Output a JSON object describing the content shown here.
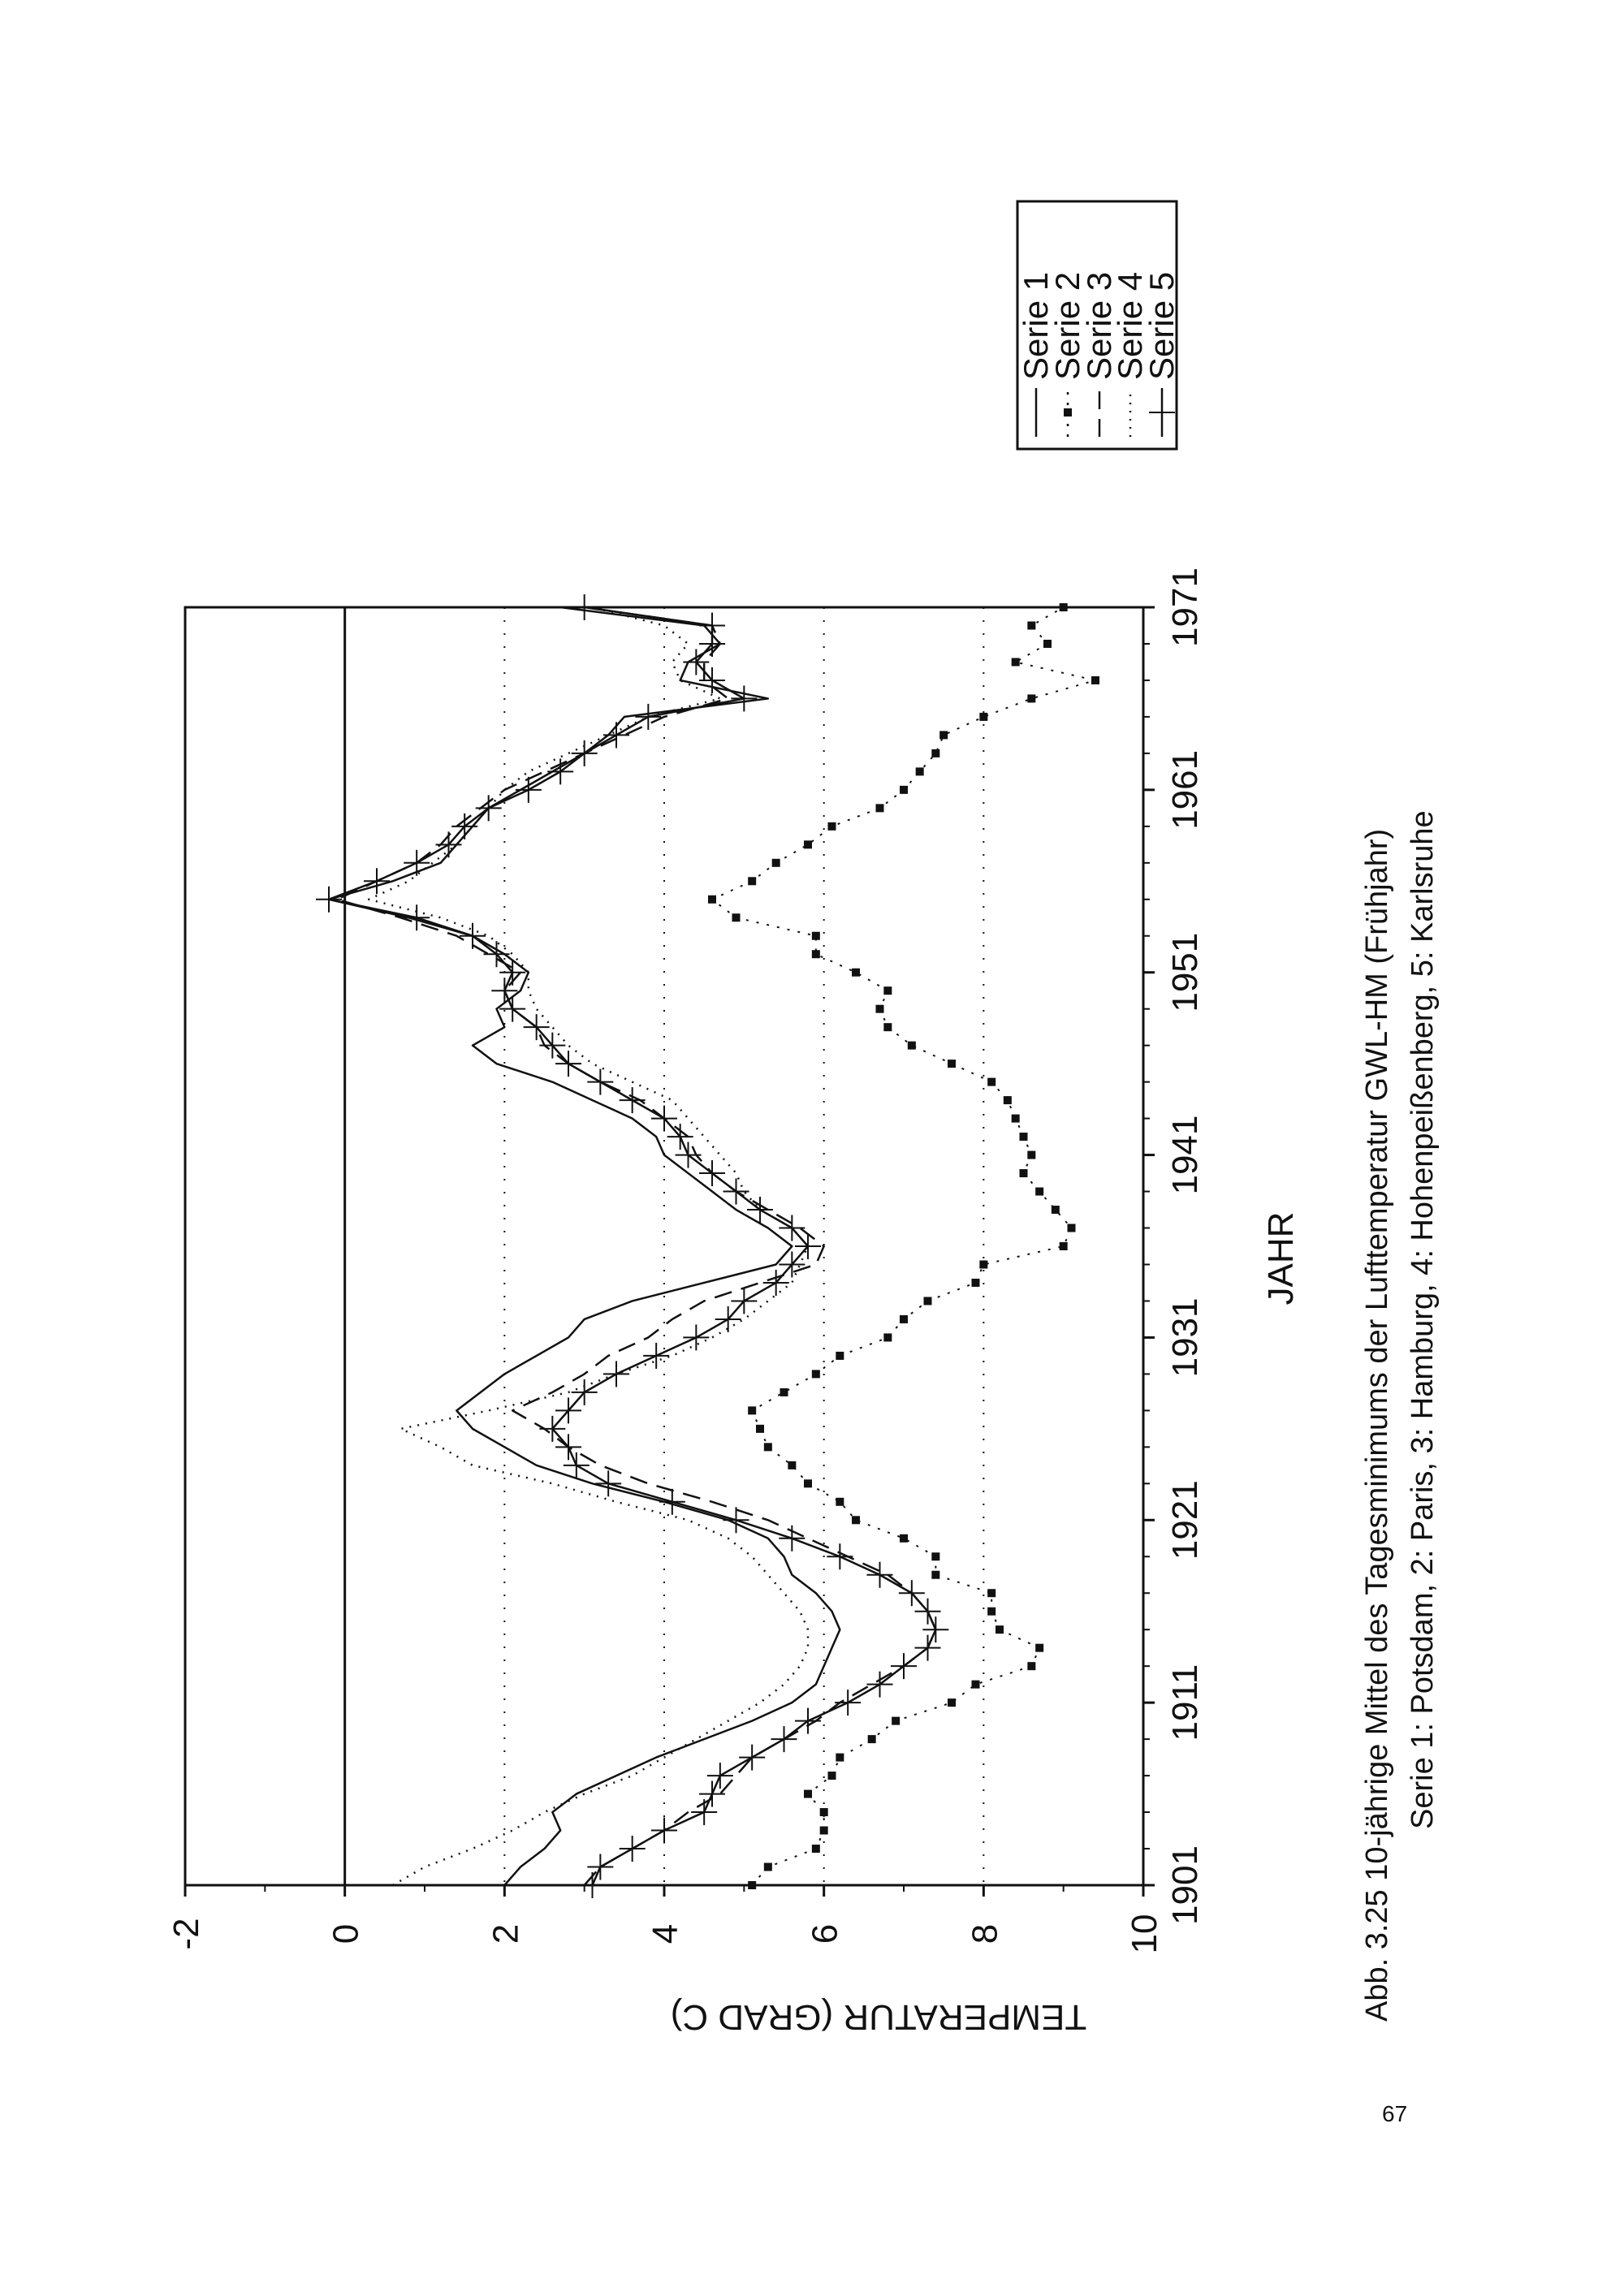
{
  "page_number": "67",
  "caption": {
    "line1": "Abb. 3.25 10-jährige Mittel des Tagesminimums der Lufttemperatur GWL-HM (Frühjahr)",
    "line2": "Serie 1: Potsdam, 2: Paris, 3: Hamburg, 4: Hohenpeißenberg, 5: Karlsruhe"
  },
  "colors": {
    "ink": "#111111",
    "background": "#ffffff"
  },
  "chart_data": {
    "type": "line",
    "orientation": "rotated 90° counter-clockwise on the page",
    "title": "",
    "xlabel": "JAHR",
    "ylabel": "TEMPERATUR (GRAD C)",
    "xlim": [
      1901,
      1971
    ],
    "ylim": [
      -2,
      10
    ],
    "xticks": [
      "1901",
      "1911",
      "1921",
      "1931",
      "1941",
      "1951",
      "1961",
      "1971"
    ],
    "yticks": [
      "-2",
      "0",
      "2",
      "4",
      "6",
      "8",
      "10"
    ],
    "grid": "dotted horizontal lines at 2, 4, 6, 8; solid reference line at 0",
    "legend_position": "right (top of the rotated page)",
    "x": [
      1901,
      1902,
      1903,
      1904,
      1905,
      1906,
      1907,
      1908,
      1909,
      1910,
      1911,
      1912,
      1913,
      1914,
      1915,
      1916,
      1917,
      1918,
      1919,
      1920,
      1921,
      1922,
      1923,
      1924,
      1925,
      1926,
      1927,
      1928,
      1929,
      1930,
      1931,
      1932,
      1933,
      1934,
      1935,
      1936,
      1937,
      1938,
      1939,
      1940,
      1941,
      1942,
      1943,
      1944,
      1945,
      1946,
      1947,
      1948,
      1949,
      1950,
      1951,
      1952,
      1953,
      1954,
      1955,
      1956,
      1957,
      1958,
      1959,
      1960,
      1961,
      1962,
      1963,
      1964,
      1965,
      1966,
      1967,
      1968,
      1969,
      1970,
      1971
    ],
    "series": [
      {
        "name": "Serie 1",
        "marker": "none",
        "dash": "solid",
        "values": [
          2.0,
          2.2,
          2.5,
          2.7,
          2.6,
          2.9,
          3.4,
          3.9,
          4.5,
          5.1,
          5.6,
          5.9,
          6.0,
          6.1,
          6.2,
          6.1,
          5.9,
          5.6,
          5.5,
          5.3,
          4.8,
          4.0,
          3.1,
          2.4,
          2.0,
          1.6,
          1.4,
          1.7,
          2.0,
          2.4,
          2.8,
          3.0,
          3.6,
          4.5,
          5.4,
          5.6,
          5.3,
          4.9,
          4.6,
          4.3,
          4.0,
          3.9,
          3.6,
          3.1,
          2.6,
          1.9,
          1.6,
          2.0,
          1.9,
          2.2,
          2.3,
          2.0,
          1.6,
          0.8,
          -0.2,
          0.6,
          1.2,
          1.4,
          1.6,
          1.8,
          2.2,
          2.6,
          3.0,
          3.3,
          3.5,
          5.3,
          4.2,
          4.3,
          4.7,
          4.5,
          2.7
        ]
      },
      {
        "name": "Serie 2",
        "marker": "square",
        "dash": "dotted",
        "values": [
          5.1,
          5.3,
          5.9,
          6.0,
          6.0,
          5.8,
          6.1,
          6.2,
          6.6,
          6.9,
          7.6,
          7.9,
          8.6,
          8.7,
          8.2,
          8.1,
          8.1,
          7.4,
          7.4,
          7.0,
          6.4,
          6.2,
          5.8,
          5.6,
          5.3,
          5.2,
          5.1,
          5.5,
          5.9,
          6.2,
          6.8,
          7.0,
          7.3,
          7.9,
          8.0,
          9.0,
          9.1,
          8.9,
          8.7,
          8.5,
          8.6,
          8.5,
          8.4,
          8.3,
          8.1,
          7.6,
          7.1,
          6.8,
          6.7,
          6.8,
          6.4,
          5.9,
          5.9,
          4.9,
          4.6,
          5.1,
          5.4,
          5.8,
          6.1,
          6.7,
          7.0,
          7.2,
          7.4,
          7.5,
          8.0,
          8.6,
          9.4,
          8.4,
          8.8,
          8.6,
          9.0
        ]
      },
      {
        "name": "Serie 3",
        "marker": "none",
        "dash": "dashed",
        "values": [
          3.0,
          3.2,
          3.6,
          4.0,
          4.3,
          4.7,
          4.9,
          5.1,
          5.5,
          5.9,
          6.2,
          6.6,
          7.0,
          7.3,
          7.4,
          7.3,
          7.1,
          6.8,
          6.3,
          5.8,
          5.3,
          4.6,
          3.8,
          3.2,
          2.8,
          2.5,
          2.1,
          2.6,
          3.0,
          3.3,
          3.8,
          4.1,
          4.5,
          5.2,
          5.9,
          6.0,
          5.7,
          5.3,
          4.9,
          4.6,
          4.4,
          4.3,
          4.0,
          3.7,
          3.2,
          2.8,
          2.5,
          2.4,
          2.1,
          2.0,
          2.2,
          1.8,
          1.4,
          0.7,
          -0.1,
          0.4,
          0.9,
          1.2,
          1.4,
          1.7,
          2.0,
          2.5,
          3.0,
          3.5,
          4.0,
          4.8,
          4.5,
          4.5,
          4.7,
          4.6,
          3.0
        ]
      },
      {
        "name": "Serie 4",
        "marker": "none",
        "dash": "dot",
        "values": [
          0.6,
          1.0,
          1.6,
          2.1,
          2.5,
          3.0,
          3.6,
          4.0,
          4.4,
          4.8,
          5.2,
          5.5,
          5.7,
          5.8,
          5.8,
          5.7,
          5.5,
          5.3,
          5.1,
          4.8,
          4.3,
          3.4,
          2.6,
          1.6,
          1.2,
          0.7,
          1.8,
          2.8,
          3.4,
          4.1,
          4.6,
          5.0,
          5.3,
          5.6,
          5.7,
          5.8,
          5.6,
          5.2,
          5.0,
          4.9,
          4.7,
          4.5,
          4.3,
          4.1,
          3.6,
          3.1,
          2.8,
          2.6,
          2.4,
          2.3,
          2.3,
          2.1,
          1.8,
          1.2,
          0.3,
          0.8,
          1.1,
          1.4,
          1.6,
          1.8,
          2.0,
          2.3,
          2.8,
          3.3,
          3.8,
          4.7,
          4.2,
          4.1,
          4.3,
          4.0,
          3.1
        ]
      },
      {
        "name": "Serie 5",
        "marker": "plus",
        "dash": "solid",
        "values": [
          3.1,
          3.2,
          3.6,
          4.0,
          4.5,
          4.6,
          4.7,
          5.1,
          5.5,
          5.8,
          6.3,
          6.7,
          7.0,
          7.3,
          7.4,
          7.3,
          7.1,
          6.7,
          6.2,
          5.6,
          4.9,
          4.1,
          3.3,
          2.9,
          2.8,
          2.6,
          2.8,
          3.0,
          3.4,
          3.9,
          4.4,
          4.8,
          5.0,
          5.4,
          5.6,
          5.8,
          5.6,
          5.2,
          4.9,
          4.6,
          4.3,
          4.2,
          4.0,
          3.6,
          3.2,
          2.8,
          2.6,
          2.4,
          2.1,
          2.0,
          2.1,
          1.9,
          1.6,
          0.9,
          -0.2,
          0.4,
          0.9,
          1.3,
          1.5,
          1.8,
          2.3,
          2.7,
          3.0,
          3.4,
          3.8,
          5.0,
          4.6,
          4.4,
          4.6,
          4.6,
          3.0
        ]
      }
    ]
  }
}
